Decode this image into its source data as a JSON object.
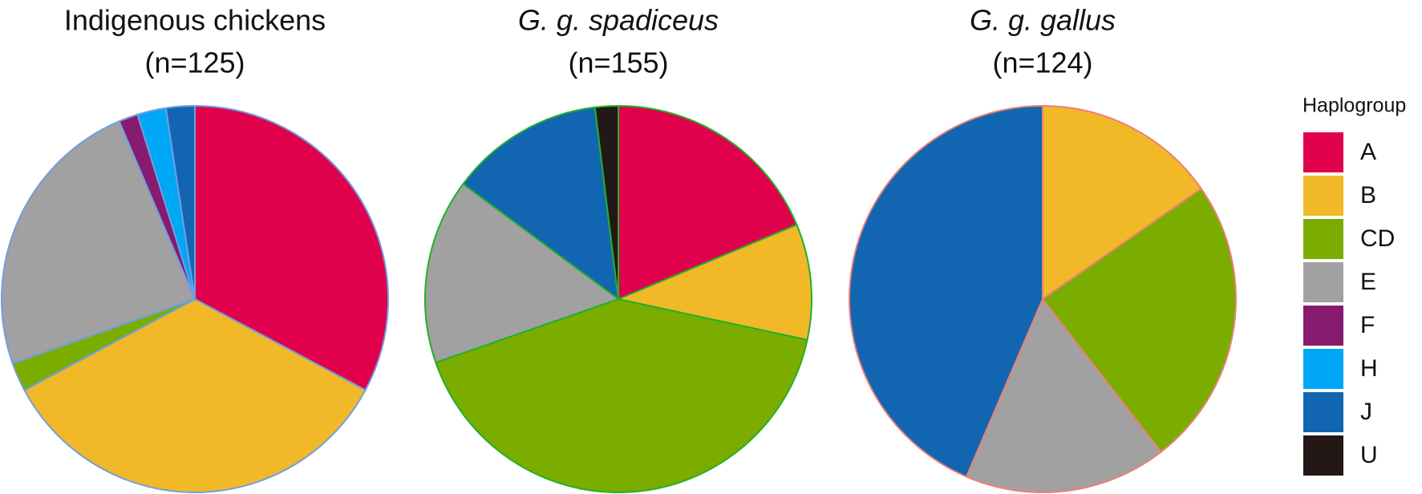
{
  "chart_data": [
    {
      "type": "pie",
      "title": "Indigenous chickens",
      "subtitle": "(n=125)",
      "italic": false,
      "outline": "#6f9fe0",
      "categories": [
        "A",
        "B",
        "CD",
        "E",
        "F",
        "H",
        "J"
      ],
      "values": [
        41,
        43,
        3,
        30,
        2,
        3,
        3
      ]
    },
    {
      "type": "pie",
      "title": "G. g. spadiceus",
      "subtitle": "(n=155)",
      "italic": true,
      "outline": "#22b02a",
      "categories": [
        "A",
        "B",
        "CD",
        "E",
        "J",
        "U"
      ],
      "values": [
        29,
        15,
        64,
        24,
        20,
        3
      ]
    },
    {
      "type": "pie",
      "title": "G. g. gallus",
      "subtitle": "(n=124)",
      "italic": true,
      "outline": "#ec7f78",
      "categories": [
        "B",
        "CD",
        "E",
        "J"
      ],
      "values": [
        19,
        30,
        21,
        54
      ]
    }
  ],
  "legend": {
    "title": "Haplogroup",
    "items": [
      {
        "name": "A",
        "color": "#e1004c"
      },
      {
        "name": "B",
        "color": "#f1b828"
      },
      {
        "name": "CD",
        "color": "#7aad00"
      },
      {
        "name": "E",
        "color": "#a0a1a0"
      },
      {
        "name": "F",
        "color": "#861b6f"
      },
      {
        "name": "H",
        "color": "#00a7f7"
      },
      {
        "name": "J",
        "color": "#1266b1"
      },
      {
        "name": "U",
        "color": "#231815"
      }
    ]
  }
}
